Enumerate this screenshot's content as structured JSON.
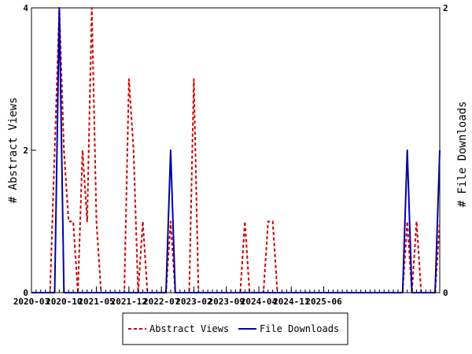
{
  "chart_data": {
    "type": "line",
    "x_ticks": [
      "2020-03",
      "2020-10",
      "2021-05",
      "2021-12",
      "2022-07",
      "2023-02",
      "2023-09",
      "2024-04",
      "2024-11",
      "2025-06"
    ],
    "y_left": {
      "label": "# Abstract Views",
      "ticks": [
        "0",
        "2",
        "4"
      ],
      "range": [
        0,
        4
      ]
    },
    "y_right": {
      "label": "# File Downloads",
      "ticks": [
        "0",
        "2"
      ],
      "range": [
        0,
        2
      ]
    },
    "legend_placement": "bottom-center",
    "grid": false,
    "series": [
      {
        "name": "Abstract Views",
        "axis": "left",
        "color": "#cc0000",
        "style": "dashed",
        "values": [
          0,
          0,
          0,
          0,
          0,
          2,
          4,
          2,
          1,
          1,
          0,
          2,
          1,
          4,
          1,
          0,
          0,
          0,
          0,
          0,
          0,
          3,
          2,
          0,
          1,
          0,
          0,
          0,
          0,
          0,
          1,
          0,
          0,
          0,
          0,
          3,
          0,
          0,
          0,
          0,
          0,
          0,
          0,
          0,
          0,
          0,
          1,
          0,
          0,
          0,
          0,
          1,
          1,
          0,
          0,
          0,
          0,
          0,
          0,
          0,
          0,
          0,
          0,
          0,
          0,
          0,
          0,
          0,
          0,
          0,
          0,
          0,
          0,
          0,
          0,
          0,
          0,
          0,
          0,
          0,
          0,
          1,
          0,
          1,
          0,
          0,
          0,
          0,
          1
        ]
      },
      {
        "name": "File Downloads",
        "axis": "right",
        "color": "#0000aa",
        "style": "solid",
        "values": [
          0,
          0,
          0,
          0,
          0,
          0,
          2,
          0,
          0,
          0,
          0,
          0,
          0,
          0,
          0,
          0,
          0,
          0,
          0,
          0,
          0,
          0,
          0,
          0,
          0,
          0,
          0,
          0,
          0,
          0,
          1,
          0,
          0,
          0,
          0,
          0,
          0,
          0,
          0,
          0,
          0,
          0,
          0,
          0,
          0,
          0,
          0,
          0,
          0,
          0,
          0,
          0,
          0,
          0,
          0,
          0,
          0,
          0,
          0,
          0,
          0,
          0,
          0,
          0,
          0,
          0,
          0,
          0,
          0,
          0,
          0,
          0,
          0,
          0,
          0,
          0,
          0,
          0,
          0,
          0,
          0,
          1,
          0,
          0,
          0,
          0,
          0,
          0,
          1
        ]
      }
    ]
  }
}
